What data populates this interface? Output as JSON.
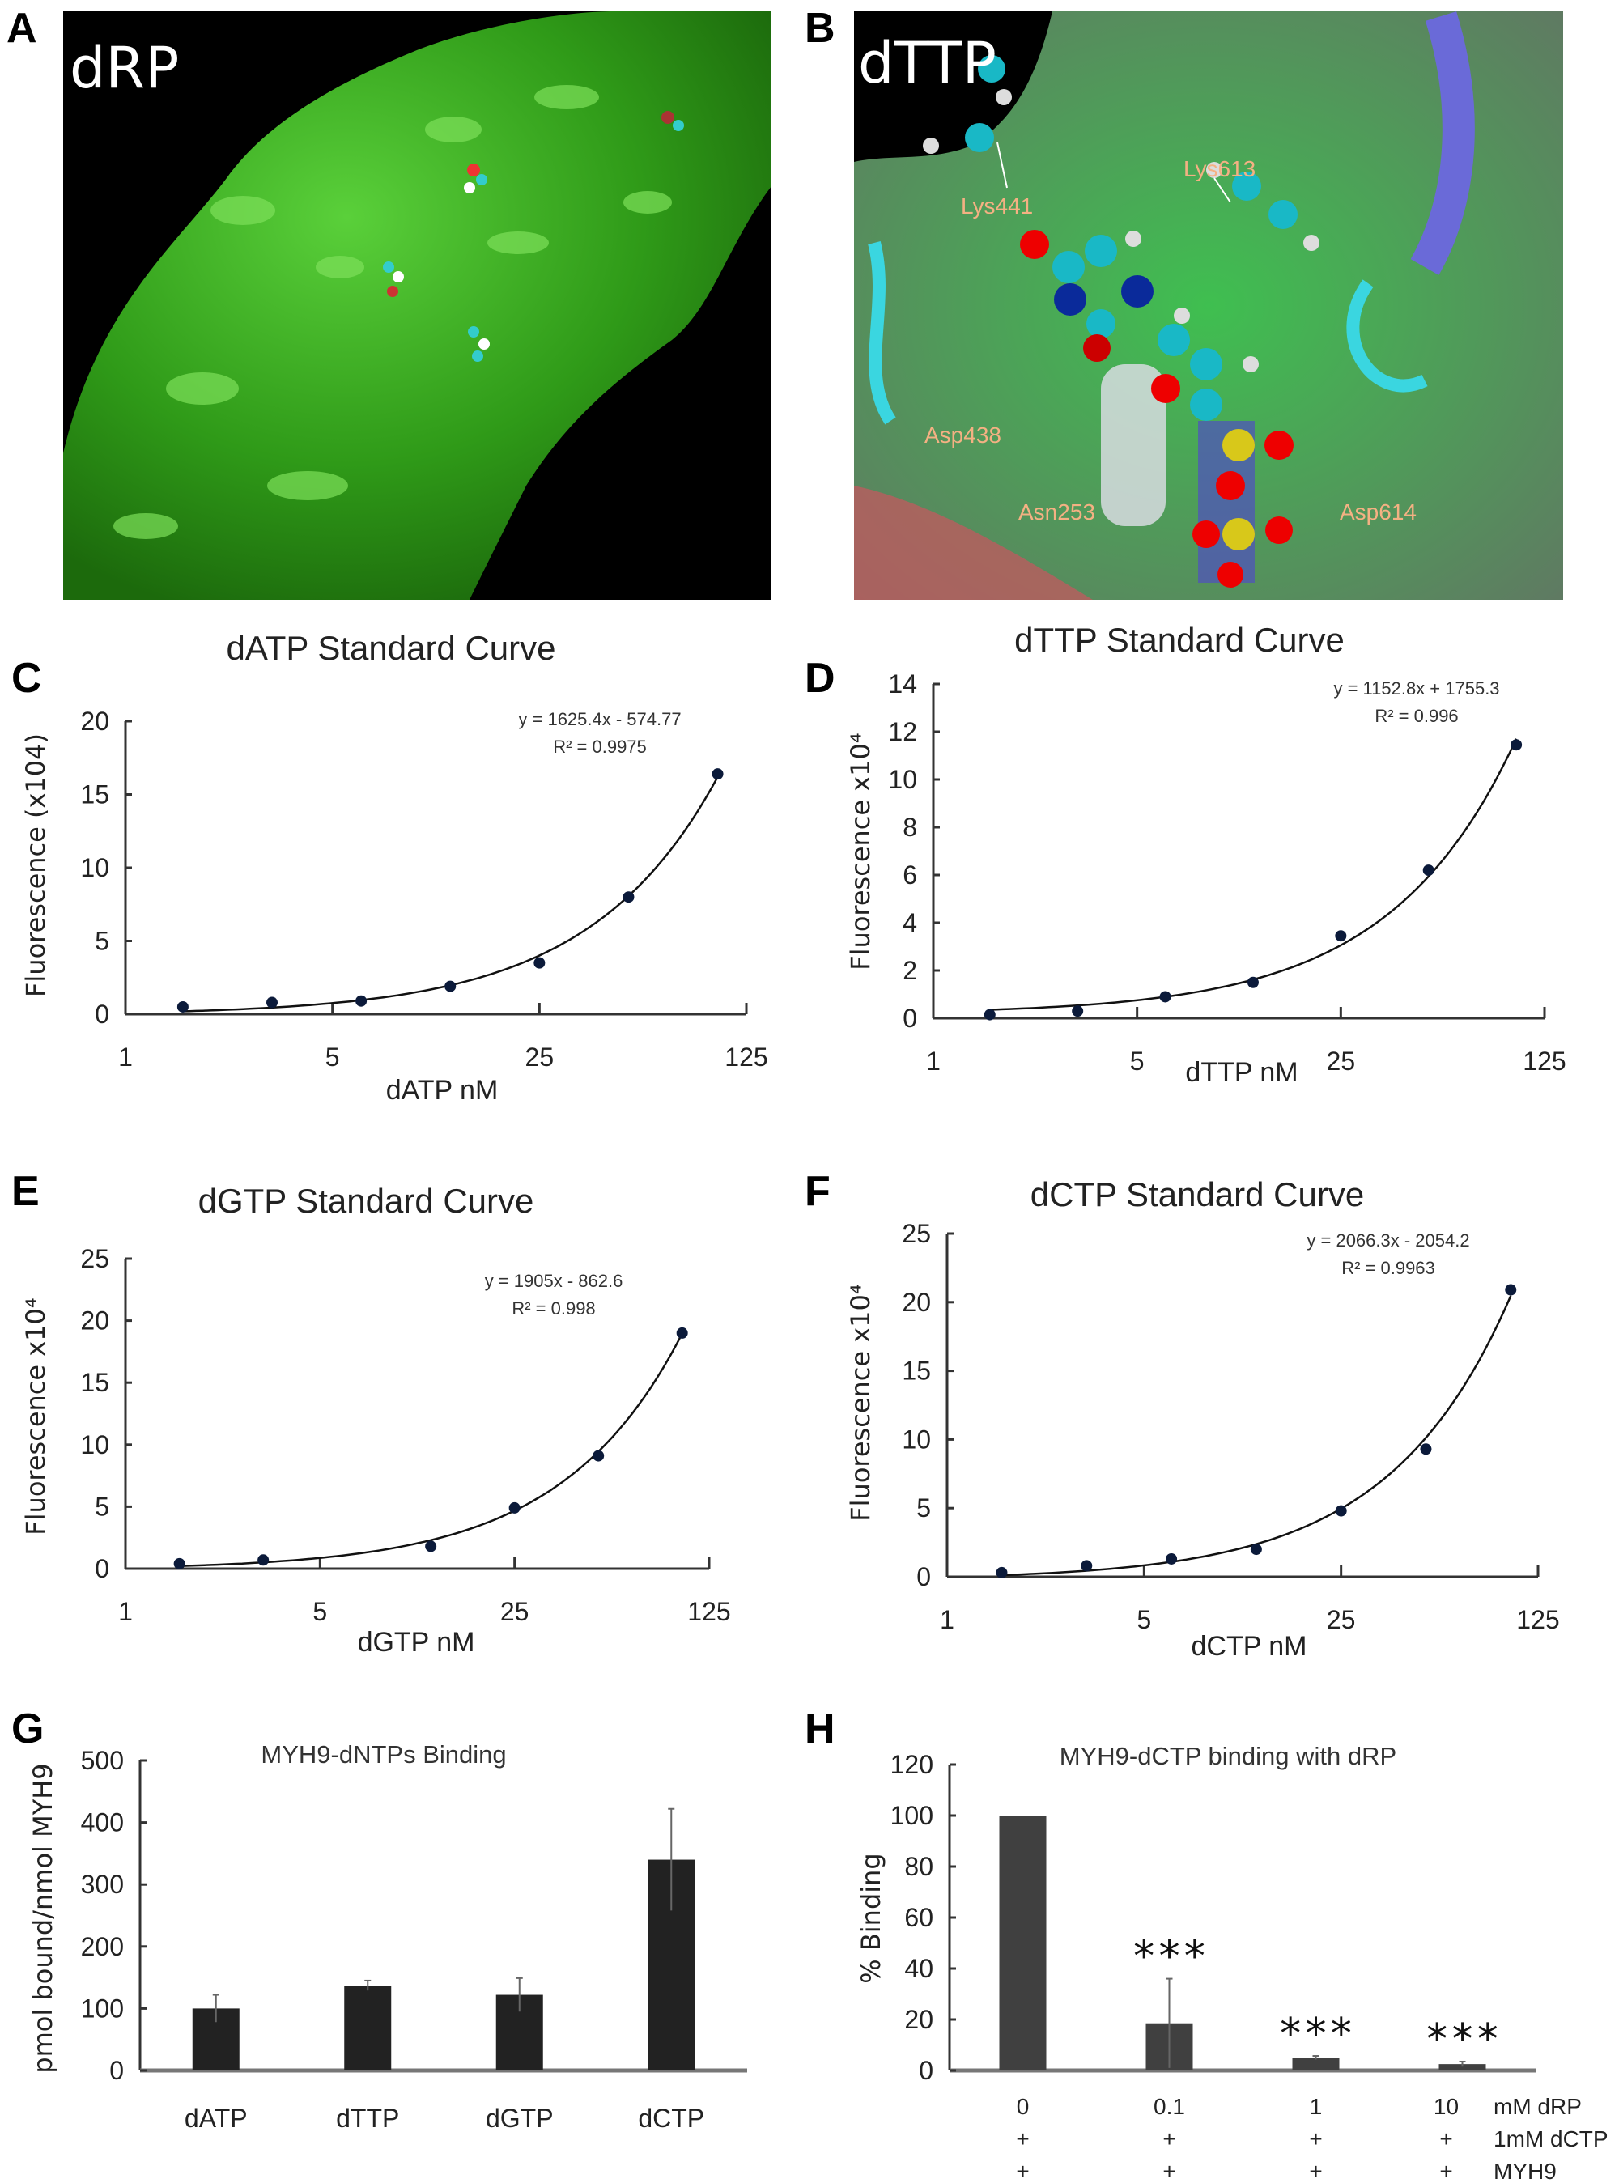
{
  "panels": {
    "A": {
      "letter": "A",
      "overlay_label": "dRP"
    },
    "B": {
      "letter": "B",
      "overlay_label": "dTTP",
      "residues": [
        "Lys441",
        "Lys613",
        "Asp438",
        "Asn253",
        "Asp614"
      ],
      "residue_color": "#f4b183"
    }
  },
  "chart_data": [
    {
      "panel_letter": "C",
      "type": "scatter",
      "title": "dATP Standard Curve",
      "xlabel": "dATP nM",
      "ylabel": "Fluorescence (x104)",
      "xscale": "log5",
      "xlim": [
        1,
        125
      ],
      "xticks": [
        "1",
        "5",
        "25",
        "125"
      ],
      "ylim": [
        0,
        20
      ],
      "yticks": [
        "0",
        "5",
        "10",
        "15",
        "20"
      ],
      "x": [
        1.5625,
        3.125,
        6.25,
        12.5,
        25,
        50,
        100
      ],
      "y": [
        0.5,
        0.8,
        0.9,
        1.9,
        3.5,
        8.0,
        16.4
      ],
      "trendline": {
        "slope": 1625.4,
        "intercept": -574.77
      },
      "equation": "y = 1625.4x - 574.77",
      "r2": "R² = 0.9975",
      "point_color": "#0b1a3a"
    },
    {
      "panel_letter": "D",
      "type": "scatter",
      "title": "dTTP Standard Curve",
      "xlabel": "dTTP nM",
      "ylabel": "Fluorescence x10⁴",
      "xscale": "log5",
      "xlim": [
        1,
        125
      ],
      "xticks": [
        "1",
        "5",
        "25",
        "125"
      ],
      "ylim": [
        0,
        14
      ],
      "yticks": [
        "0",
        "2",
        "4",
        "6",
        "8",
        "10",
        "12",
        "14"
      ],
      "x": [
        1.5625,
        3.125,
        6.25,
        12.5,
        25,
        50,
        100
      ],
      "y": [
        0.15,
        0.3,
        0.9,
        1.5,
        3.45,
        6.2,
        11.45
      ],
      "trendline": {
        "slope": 1152.8,
        "intercept": 1755.3
      },
      "equation": "y = 1152.8x + 1755.3",
      "r2": "R² = 0.996",
      "point_color": "#0b1a3a"
    },
    {
      "panel_letter": "E",
      "type": "scatter",
      "title": "dGTP Standard Curve",
      "xlabel": "dGTP nM",
      "ylabel": "Fluorescence x10⁴",
      "xscale": "log5",
      "xlim": [
        1,
        125
      ],
      "xticks": [
        "1",
        "5",
        "25",
        "125"
      ],
      "ylim": [
        0,
        25
      ],
      "yticks": [
        "0",
        "5",
        "10",
        "15",
        "20",
        "25"
      ],
      "x": [
        1.5625,
        3.125,
        12.5,
        25,
        50,
        100
      ],
      "y": [
        0.4,
        0.7,
        1.8,
        4.9,
        9.1,
        19.0
      ],
      "trendline": {
        "slope": 1905,
        "intercept": -862.6
      },
      "equation": "y = 1905x - 862.6",
      "r2": "R² = 0.998",
      "point_color": "#0b1a3a"
    },
    {
      "panel_letter": "F",
      "type": "scatter",
      "title": "dCTP Standard Curve",
      "xlabel": "dCTP nM",
      "ylabel": "Fluorescence x10⁴",
      "xscale": "log5",
      "xlim": [
        1,
        125
      ],
      "xticks": [
        "1",
        "5",
        "25",
        "125"
      ],
      "ylim": [
        0,
        25
      ],
      "yticks": [
        "0",
        "5",
        "10",
        "15",
        "20",
        "25"
      ],
      "x": [
        1.5625,
        3.125,
        6.25,
        12.5,
        25,
        50,
        100
      ],
      "y": [
        0.3,
        0.8,
        1.3,
        2.0,
        4.8,
        9.3,
        20.9
      ],
      "trendline": {
        "slope": 2066.3,
        "intercept": -2054.2
      },
      "equation": "y = 2066.3x - 2054.2",
      "r2": "R² = 0.9963",
      "point_color": "#0b1a3a"
    },
    {
      "panel_letter": "G",
      "type": "bar",
      "title": "MYH9-dNTPs Binding",
      "xlabel": "",
      "ylabel": "pmol bound/nmol MYH9",
      "categories": [
        "dATP",
        "dTTP",
        "dGTP",
        "dCTP"
      ],
      "values": [
        100,
        137,
        122,
        340
      ],
      "errors": [
        22,
        8,
        27,
        82
      ],
      "ylim": [
        0,
        500
      ],
      "yticks": [
        "0",
        "100",
        "200",
        "300",
        "400",
        "500"
      ],
      "bar_color": "#222222"
    },
    {
      "panel_letter": "H",
      "type": "bar",
      "title": "MYH9-dCTP binding with dRP",
      "xlabel": "",
      "ylabel": "% Binding",
      "categories": [
        "0",
        "0.1",
        "1",
        "10"
      ],
      "values": [
        100,
        18.5,
        5,
        2.5
      ],
      "errors": [
        0,
        17.5,
        0.7,
        1
      ],
      "annotations": [
        "",
        "***",
        "***",
        "***"
      ],
      "condition_rows": [
        {
          "label": "mM dRP",
          "cells": [
            "0",
            "0.1",
            "1",
            "10"
          ]
        },
        {
          "label": "1mM dCTP",
          "cells": [
            "+",
            "+",
            "+",
            "+"
          ]
        },
        {
          "label": "MYH9",
          "cells": [
            "+",
            "+",
            "+",
            "+"
          ]
        }
      ],
      "ylim": [
        0,
        120
      ],
      "yticks": [
        "0",
        "20",
        "40",
        "60",
        "80",
        "100",
        "120"
      ],
      "bar_color": "#404040"
    }
  ]
}
